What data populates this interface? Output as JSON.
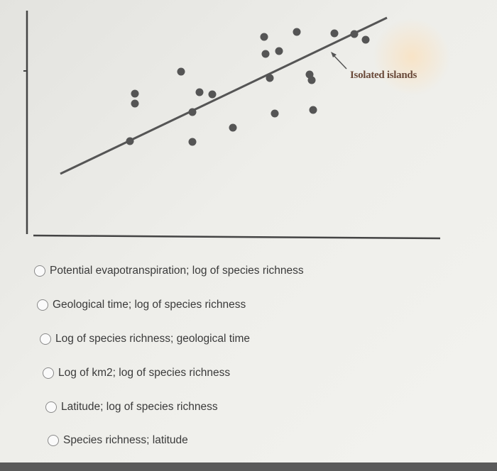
{
  "figure": {
    "annotation": "Isolated islands"
  },
  "question": {
    "options": [
      {
        "label": "Potential evapotranspiration; log of species richness",
        "selected": false
      },
      {
        "label": "Geological time; log of species richness",
        "selected": false
      },
      {
        "label": "Log of species richness; geological time",
        "selected": false
      },
      {
        "label": "Log of km2; log of species richness",
        "selected": false
      },
      {
        "label": "Latitude; log of species richness",
        "selected": false
      },
      {
        "label": "Species richness; latitude",
        "selected": false
      }
    ]
  }
}
